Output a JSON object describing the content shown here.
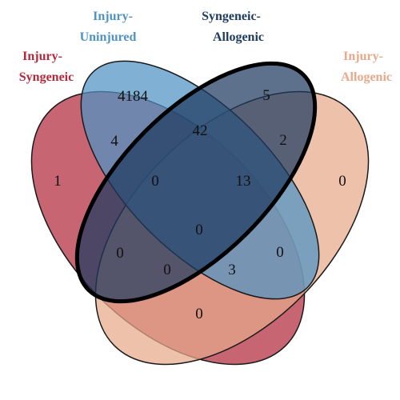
{
  "sets": [
    {
      "key": "is",
      "lines": [
        "Injury-",
        "Syngeneic"
      ],
      "color": "#b22a3c"
    },
    {
      "key": "iu",
      "lines": [
        "Injury-",
        "Uninjured"
      ],
      "color": "#4f93c4"
    },
    {
      "key": "sa",
      "lines": [
        "Syngeneic-",
        "Allogenic"
      ],
      "color": "#1e3a5f"
    },
    {
      "key": "ia",
      "lines": [
        "Injury-",
        "Allogenic"
      ],
      "color": "#e8a98a"
    }
  ],
  "regions": {
    "iu_only": "4184",
    "sa_only": "5",
    "is_iu": "4",
    "iu_sa": "42",
    "sa_ia": "2",
    "is_only": "1",
    "is_iu_sa": "0",
    "iu_sa_ia": "13",
    "ia_only": "0",
    "all_four": "0",
    "is_sa": "0",
    "iu_ia": "0",
    "is_sa_ia": "0",
    "is_iu_ia": "3",
    "is_ia": "0"
  }
}
